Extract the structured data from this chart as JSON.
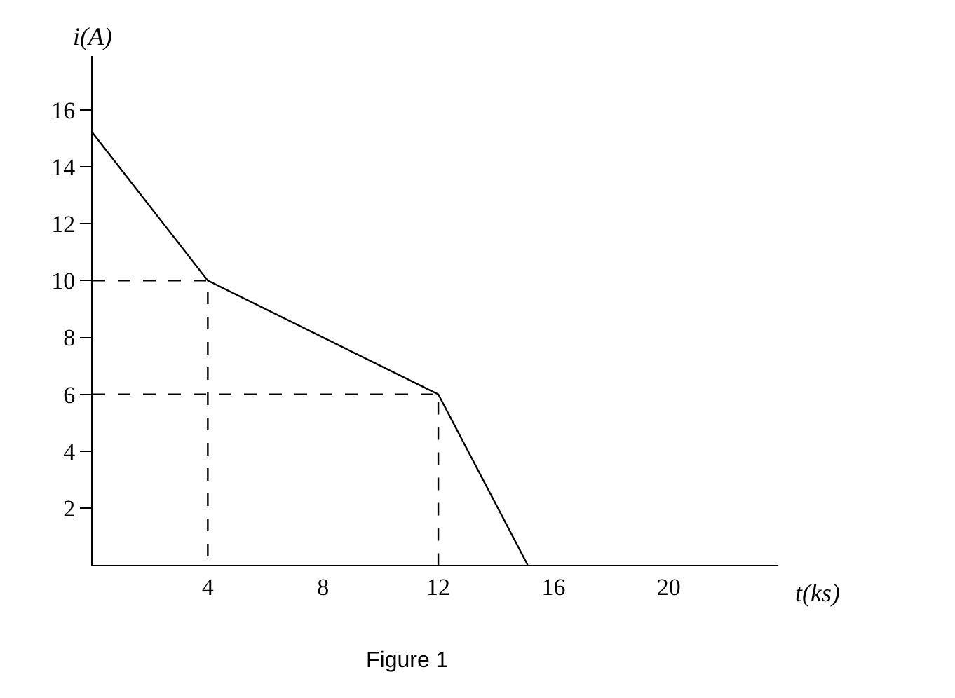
{
  "chart_data": {
    "type": "line",
    "xlabel": "t(ks)",
    "ylabel": "i(A)",
    "xlim": [
      0,
      23.8
    ],
    "ylim": [
      0,
      17.9
    ],
    "xticks": [
      4,
      8,
      12,
      16,
      20
    ],
    "yticks": [
      2,
      4,
      6,
      8,
      10,
      12,
      14,
      16
    ],
    "series": [
      {
        "color": "#000000",
        "line_style": "solid",
        "x": [
          0,
          4,
          12,
          15.1
        ],
        "values": [
          15.2,
          10,
          6,
          0
        ]
      },
      {
        "color": "#000000",
        "line_style": "dashed",
        "x": [
          0,
          4,
          4
        ],
        "values": [
          10,
          10,
          0
        ]
      },
      {
        "color": "#000000",
        "line_style": "dashed",
        "x": [
          0,
          12,
          12
        ],
        "values": [
          6,
          6,
          0
        ]
      }
    ],
    "annotations": [
      "Figure 1"
    ]
  }
}
